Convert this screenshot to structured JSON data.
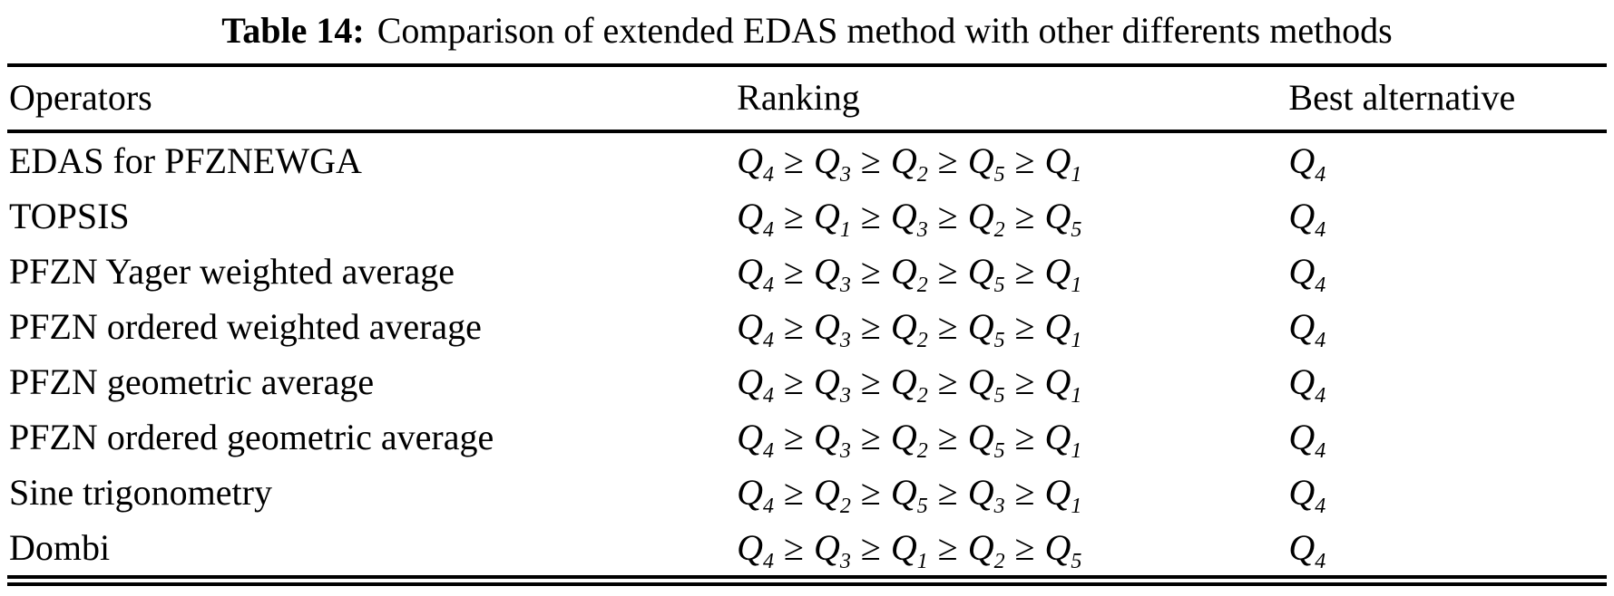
{
  "caption": {
    "label": "Table 14:",
    "text": "Comparison of extended EDAS method with other differents methods"
  },
  "table": {
    "symbol": "Q",
    "relation": "≥",
    "headers": [
      "Operators",
      "Ranking",
      "Best alternative"
    ],
    "rows": [
      {
        "operator": "EDAS for PFZNEWGA",
        "ranking": [
          4,
          3,
          2,
          5,
          1
        ],
        "best": 4
      },
      {
        "operator": "TOPSIS",
        "ranking": [
          4,
          1,
          3,
          2,
          5
        ],
        "best": 4
      },
      {
        "operator": "PFZN Yager weighted average",
        "ranking": [
          4,
          3,
          2,
          5,
          1
        ],
        "best": 4
      },
      {
        "operator": "PFZN ordered weighted average",
        "ranking": [
          4,
          3,
          2,
          5,
          1
        ],
        "best": 4
      },
      {
        "operator": "PFZN geometric average",
        "ranking": [
          4,
          3,
          2,
          5,
          1
        ],
        "best": 4
      },
      {
        "operator": "PFZN ordered geometric average",
        "ranking": [
          4,
          3,
          2,
          5,
          1
        ],
        "best": 4
      },
      {
        "operator": "Sine trigonometry",
        "ranking": [
          4,
          2,
          5,
          3,
          1
        ],
        "best": 4
      },
      {
        "operator": "Dombi",
        "ranking": [
          4,
          3,
          1,
          2,
          5
        ],
        "best": 4
      }
    ]
  }
}
